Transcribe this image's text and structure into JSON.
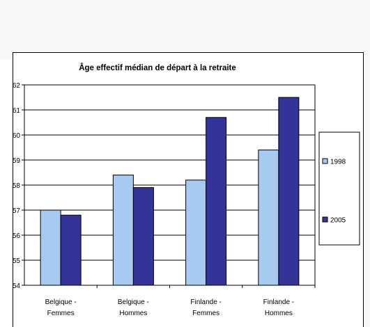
{
  "chart_data": {
    "type": "bar",
    "title": "Âge effectif médian de départ à la retraite",
    "categories": [
      [
        "Belgique -",
        "Femmes"
      ],
      [
        "Belgique -",
        "Hommes"
      ],
      [
        "Finlande -",
        "Femmes"
      ],
      [
        "Finlande -",
        "Hommes"
      ]
    ],
    "series": [
      {
        "name": "1998",
        "color": "#a6caf0",
        "values": [
          57.0,
          58.4,
          58.2,
          59.4
        ]
      },
      {
        "name": "2005",
        "color": "#333399",
        "values": [
          56.8,
          57.9,
          60.7,
          61.5
        ]
      }
    ],
    "ylim": [
      54,
      62
    ],
    "yticks": [
      "54",
      "55",
      "56",
      "57",
      "58",
      "59",
      "60",
      "61",
      "62"
    ],
    "grid": true,
    "legend": "right"
  }
}
